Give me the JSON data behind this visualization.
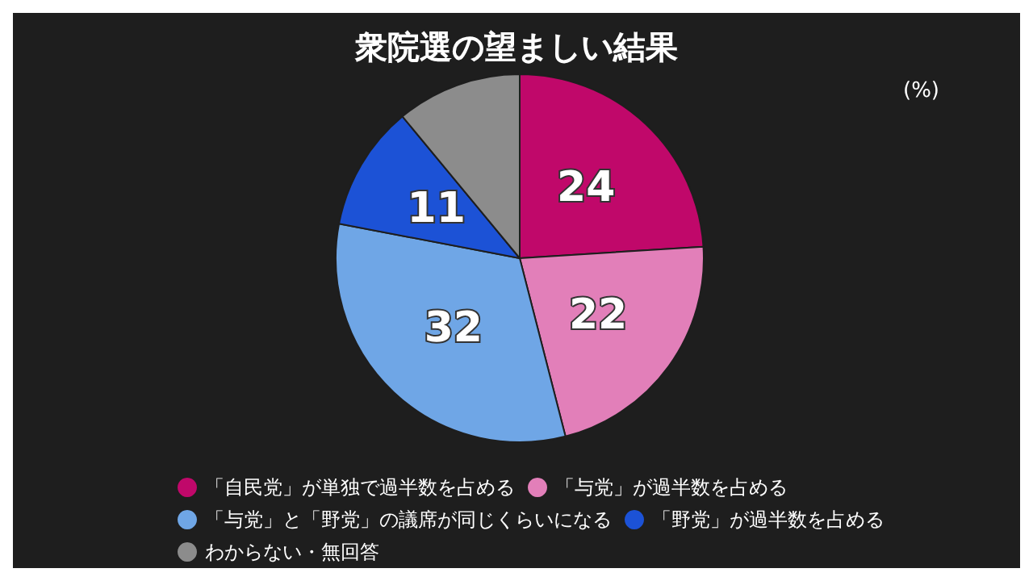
{
  "chart_data": {
    "type": "pie",
    "title": "衆院選の望ましい結果",
    "categories": [
      "「自民党」が単独で過半数を占める",
      "「与党」が過半数を占める",
      "「与党」と「野党」の議席が同じくらいになる",
      "「野党」が過半数を占める",
      "わからない・無回答"
    ],
    "values": [
      24,
      22,
      32,
      11,
      11
    ],
    "colors": [
      "#c0086a",
      "#e27fb9",
      "#6fa6e6",
      "#1c52d6",
      "#8c8c8c"
    ],
    "value_labels": [
      "24",
      "22",
      "32",
      "11",
      null
    ],
    "annotations": [
      "(%)"
    ],
    "legend": "bottom"
  }
}
